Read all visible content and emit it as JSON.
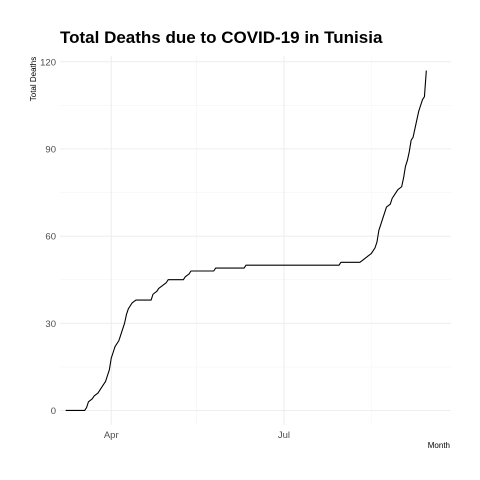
{
  "chart_data": {
    "type": "line",
    "title": "Total Deaths due to COVID-19 in Tunisia",
    "xlabel": "Month",
    "ylabel": "Total Deaths",
    "x_axis": {
      "type": "date",
      "range": [
        "2020-03-05",
        "2020-09-27"
      ],
      "ticks": [
        {
          "date": "2020-04-01",
          "label": "Apr"
        },
        {
          "date": "2020-07-01",
          "label": "Jul"
        }
      ],
      "minor_ticks": [
        "2020-05-16",
        "2020-08-16"
      ]
    },
    "y_axis": {
      "range": [
        -5,
        122
      ],
      "ticks": [
        0,
        30,
        60,
        90,
        120
      ],
      "minor_ticks": [
        15,
        45,
        75,
        105
      ]
    },
    "grid": true,
    "series": [
      {
        "color": "#000000",
        "points": [
          [
            "2020-03-08",
            0
          ],
          [
            "2020-03-18",
            0
          ],
          [
            "2020-03-19",
            1
          ],
          [
            "2020-03-20",
            3
          ],
          [
            "2020-03-22",
            4
          ],
          [
            "2020-03-23",
            5
          ],
          [
            "2020-03-25",
            6
          ],
          [
            "2020-03-27",
            8
          ],
          [
            "2020-03-29",
            10
          ],
          [
            "2020-03-30",
            12
          ],
          [
            "2020-03-31",
            14
          ],
          [
            "2020-04-01",
            18
          ],
          [
            "2020-04-02",
            20
          ],
          [
            "2020-04-03",
            22
          ],
          [
            "2020-04-05",
            24
          ],
          [
            "2020-04-06",
            26
          ],
          [
            "2020-04-08",
            30
          ],
          [
            "2020-04-09",
            33
          ],
          [
            "2020-04-10",
            35
          ],
          [
            "2020-04-11",
            36
          ],
          [
            "2020-04-12",
            37
          ],
          [
            "2020-04-14",
            38
          ],
          [
            "2020-04-22",
            38
          ],
          [
            "2020-04-23",
            40
          ],
          [
            "2020-04-25",
            41
          ],
          [
            "2020-04-26",
            42
          ],
          [
            "2020-04-28",
            43
          ],
          [
            "2020-04-30",
            44
          ],
          [
            "2020-05-01",
            45
          ],
          [
            "2020-05-09",
            45
          ],
          [
            "2020-05-10",
            46
          ],
          [
            "2020-05-12",
            47
          ],
          [
            "2020-05-13",
            48
          ],
          [
            "2020-05-25",
            48
          ],
          [
            "2020-05-26",
            49
          ],
          [
            "2020-06-10",
            49
          ],
          [
            "2020-06-11",
            50
          ],
          [
            "2020-07-30",
            50
          ],
          [
            "2020-07-31",
            51
          ],
          [
            "2020-08-10",
            51
          ],
          [
            "2020-08-12",
            52
          ],
          [
            "2020-08-14",
            53
          ],
          [
            "2020-08-16",
            54
          ],
          [
            "2020-08-17",
            55
          ],
          [
            "2020-08-18",
            56
          ],
          [
            "2020-08-19",
            58
          ],
          [
            "2020-08-20",
            62
          ],
          [
            "2020-08-21",
            64
          ],
          [
            "2020-08-22",
            66
          ],
          [
            "2020-08-23",
            68
          ],
          [
            "2020-08-24",
            70
          ],
          [
            "2020-08-26",
            71
          ],
          [
            "2020-08-27",
            73
          ],
          [
            "2020-08-28",
            74
          ],
          [
            "2020-08-29",
            75
          ],
          [
            "2020-08-30",
            76
          ],
          [
            "2020-09-01",
            77
          ],
          [
            "2020-09-02",
            80
          ],
          [
            "2020-09-03",
            84
          ],
          [
            "2020-09-04",
            86
          ],
          [
            "2020-09-05",
            89
          ],
          [
            "2020-09-06",
            93
          ],
          [
            "2020-09-07",
            94
          ],
          [
            "2020-09-08",
            97
          ],
          [
            "2020-09-09",
            100
          ],
          [
            "2020-09-10",
            103
          ],
          [
            "2020-09-11",
            105
          ],
          [
            "2020-09-12",
            107
          ],
          [
            "2020-09-13",
            108
          ],
          [
            "2020-09-14",
            117
          ]
        ]
      }
    ]
  }
}
